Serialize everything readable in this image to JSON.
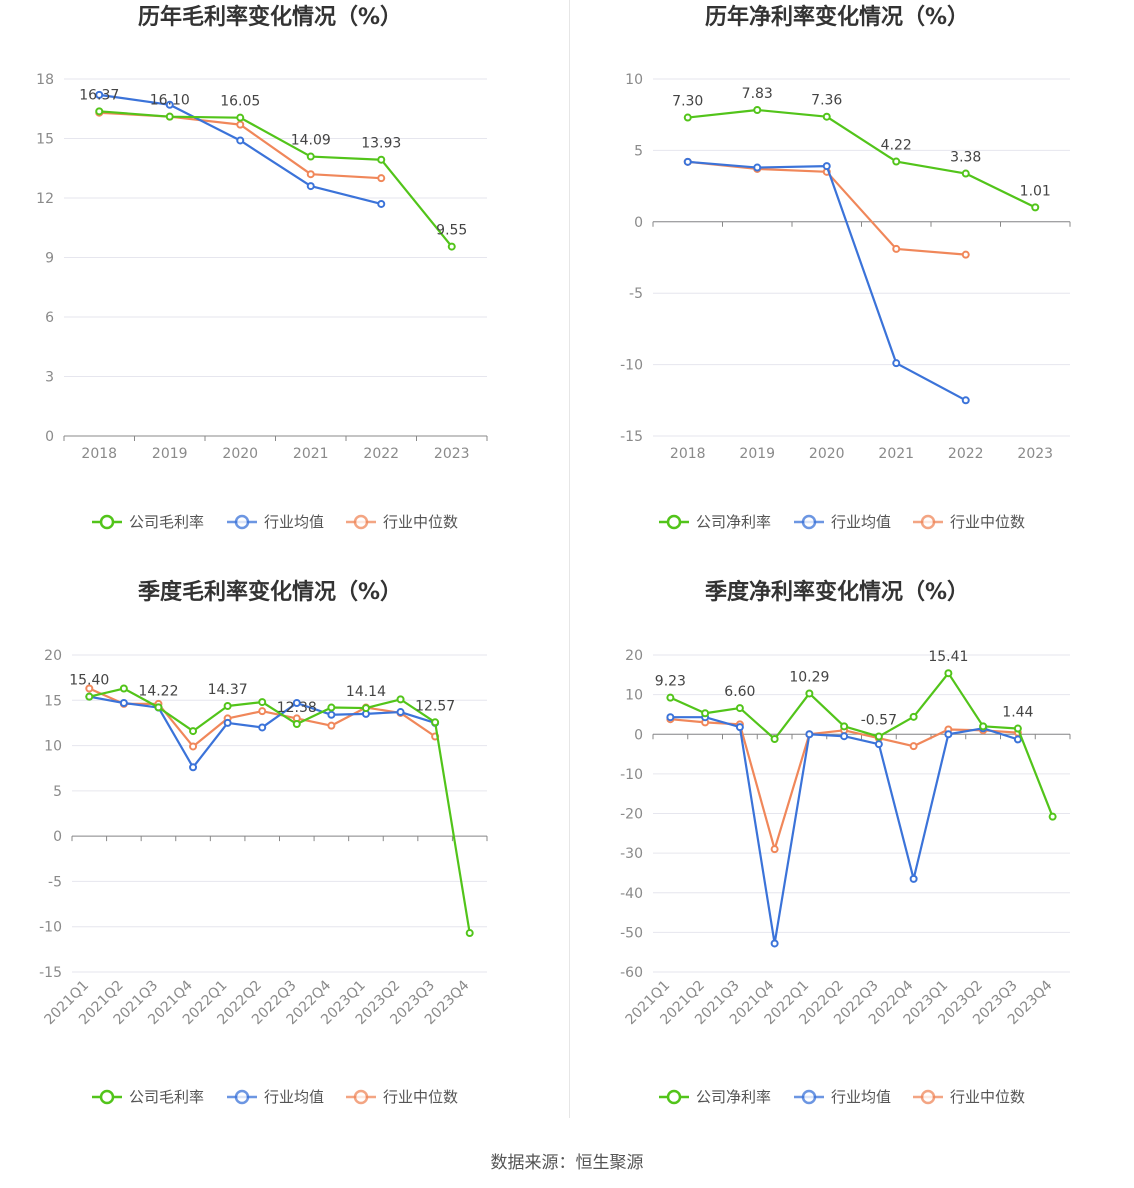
{
  "source_text": "数据来源：恒生聚源",
  "colors": {
    "company": "#52c41a",
    "avg": "#3b73d9",
    "median": "#f0875a",
    "grid": "#e6e6ee",
    "axis": "#888888"
  },
  "chart_data": [
    {
      "type": "line",
      "title": "历年毛利率变化情况（%）",
      "categories": [
        "2018",
        "2019",
        "2020",
        "2021",
        "2022",
        "2023"
      ],
      "ylim": [
        0,
        18
      ],
      "yticks": [
        0,
        3,
        6,
        9,
        12,
        15,
        18
      ],
      "grid": true,
      "legend_position": "bottom",
      "series": [
        {
          "name": "公司毛利率",
          "role": "company",
          "values": [
            16.37,
            16.1,
            16.05,
            14.09,
            13.93,
            9.55
          ],
          "labels": [
            "16.37",
            "16.10",
            "16.05",
            "14.09",
            "13.93",
            "9.55"
          ]
        },
        {
          "name": "行业均值",
          "role": "avg",
          "values": [
            17.2,
            16.7,
            14.9,
            12.6,
            11.7,
            null
          ]
        },
        {
          "name": "行业中位数",
          "role": "median",
          "values": [
            16.3,
            16.1,
            15.7,
            13.2,
            13.0,
            null
          ]
        }
      ]
    },
    {
      "type": "line",
      "title": "历年净利率变化情况（%）",
      "categories": [
        "2018",
        "2019",
        "2020",
        "2021",
        "2022",
        "2023"
      ],
      "ylim": [
        -15,
        10
      ],
      "yticks": [
        -15,
        -10,
        -5,
        0,
        5,
        10
      ],
      "grid": true,
      "legend_position": "bottom",
      "series": [
        {
          "name": "公司净利率",
          "role": "company",
          "values": [
            7.3,
            7.83,
            7.36,
            4.22,
            3.38,
            1.01
          ],
          "labels": [
            "7.30",
            "7.83",
            "7.36",
            "4.22",
            "3.38",
            "1.01"
          ]
        },
        {
          "name": "行业均值",
          "role": "avg",
          "values": [
            4.2,
            3.8,
            3.9,
            -9.9,
            -12.5,
            null
          ]
        },
        {
          "name": "行业中位数",
          "role": "median",
          "values": [
            4.2,
            3.7,
            3.5,
            -1.9,
            -2.3,
            null
          ]
        }
      ]
    },
    {
      "type": "line",
      "title": "季度毛利率变化情况（%）",
      "categories": [
        "2021Q1",
        "2021Q2",
        "2021Q3",
        "2021Q4",
        "2022Q1",
        "2022Q2",
        "2022Q3",
        "2022Q4",
        "2023Q1",
        "2023Q2",
        "2023Q3",
        "2023Q4"
      ],
      "ylim": [
        -15,
        20
      ],
      "yticks": [
        -15,
        -10,
        -5,
        0,
        5,
        10,
        15,
        20
      ],
      "grid": true,
      "legend_position": "bottom",
      "series": [
        {
          "name": "公司毛利率",
          "role": "company",
          "values": [
            15.4,
            16.3,
            14.22,
            11.6,
            14.37,
            14.8,
            12.38,
            14.2,
            14.14,
            15.1,
            12.57,
            -10.7
          ],
          "labels": [
            "15.40",
            "",
            "14.22",
            "",
            "14.37",
            "",
            "12.38",
            "",
            "14.14",
            "",
            "12.57",
            ""
          ]
        },
        {
          "name": "行业均值",
          "role": "avg",
          "values": [
            15.4,
            14.7,
            14.2,
            7.6,
            12.5,
            12.0,
            14.7,
            13.4,
            13.5,
            13.7,
            12.5,
            null
          ]
        },
        {
          "name": "行业中位数",
          "role": "median",
          "values": [
            16.3,
            14.6,
            14.6,
            9.9,
            13.0,
            13.8,
            13.0,
            12.2,
            14.2,
            13.6,
            11.0,
            null
          ]
        }
      ]
    },
    {
      "type": "line",
      "title": "季度净利率变化情况（%）",
      "categories": [
        "2021Q1",
        "2021Q2",
        "2021Q3",
        "2021Q4",
        "2022Q1",
        "2022Q2",
        "2022Q3",
        "2022Q4",
        "2023Q1",
        "2023Q2",
        "2023Q3",
        "2023Q4"
      ],
      "ylim": [
        -60,
        20
      ],
      "yticks": [
        -60,
        -50,
        -40,
        -30,
        -20,
        -10,
        0,
        10,
        20
      ],
      "grid": true,
      "legend_position": "bottom",
      "series": [
        {
          "name": "公司净利率",
          "role": "company",
          "values": [
            9.23,
            5.3,
            6.6,
            -1.2,
            10.29,
            2.0,
            -0.57,
            4.4,
            15.41,
            2.0,
            1.44,
            -20.8
          ],
          "labels": [
            "9.23",
            "",
            "6.60",
            "",
            "10.29",
            "",
            "-0.57",
            "",
            "15.41",
            "",
            "1.44",
            ""
          ]
        },
        {
          "name": "行业均值",
          "role": "avg",
          "values": [
            4.3,
            4.3,
            1.8,
            -52.8,
            0.0,
            -0.5,
            -2.5,
            -36.5,
            0.0,
            1.5,
            -1.3,
            null
          ]
        },
        {
          "name": "行业中位数",
          "role": "median",
          "values": [
            3.8,
            3.0,
            2.5,
            -29.0,
            0.0,
            1.0,
            -1.0,
            -3.0,
            1.2,
            1.0,
            0.4,
            null
          ]
        }
      ]
    }
  ]
}
